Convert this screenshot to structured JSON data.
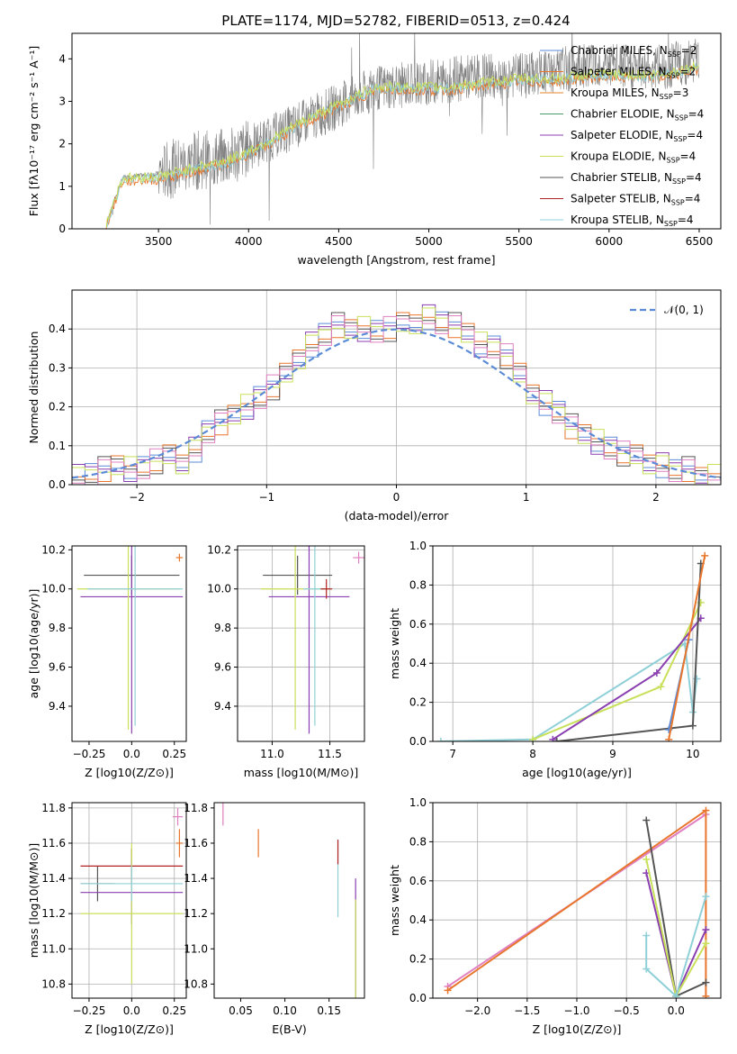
{
  "title": "PLATE=1174, MJD=52782, FIBERID=0513, z=0.424",
  "legend_entries": [
    {
      "label": "Chabrier MILES, N",
      "sub": "SSP",
      "suffix": "=2",
      "color": "#5b8bd6"
    },
    {
      "label": "Salpeter MILES, N",
      "sub": "SSP",
      "suffix": "=2",
      "color": "#e8762c"
    },
    {
      "label": "Kroupa MILES, N",
      "sub": "SSP",
      "suffix": "=3",
      "color": "#e0852b"
    },
    {
      "label": "Chabrier ELODIE, N",
      "sub": "SSP",
      "suffix": "=4",
      "color": "#4a9a6a"
    },
    {
      "label": "Salpeter ELODIE, N",
      "sub": "SSP",
      "suffix": "=4",
      "color": "#8a3fb0"
    },
    {
      "label": "Kroupa ELODIE, N",
      "sub": "SSP",
      "suffix": "=4",
      "color": "#c8e05a"
    },
    {
      "label": "Chabrier STELIB, N",
      "sub": "SSP",
      "suffix": "=4",
      "color": "#555555"
    },
    {
      "label": "Salpeter STELIB, N",
      "sub": "SSP",
      "suffix": "=4",
      "color": "#b22222"
    },
    {
      "label": "Kroupa STELIB, N",
      "sub": "SSP",
      "suffix": "=4",
      "color": "#8fd0d8"
    }
  ],
  "chart_data": [
    {
      "type": "line",
      "panel": "spectrum",
      "xlabel": "wavelength [Angstrom, rest frame]",
      "ylabel": "Flux [fλ10⁻¹⁷ erg cm⁻² s⁻¹ A⁻¹]",
      "xlim": [
        3020,
        6620
      ],
      "ylim": [
        0,
        4.6
      ],
      "xticks": [
        3500,
        4000,
        4500,
        5000,
        5500,
        6000,
        6500
      ],
      "yticks": [
        0,
        1,
        2,
        3,
        4
      ],
      "series": [
        {
          "name": "data",
          "color": "#808080",
          "x": [
            3200,
            3300,
            3500,
            3700,
            3900,
            4100,
            4300,
            4500,
            4700,
            4900,
            5100,
            5300,
            5500,
            5700,
            5900,
            6100,
            6300,
            6500
          ],
          "y": [
            0.0,
            1.2,
            1.3,
            1.6,
            1.7,
            2.1,
            2.5,
            2.9,
            3.3,
            3.4,
            3.5,
            3.6,
            3.6,
            3.7,
            3.9,
            3.8,
            3.8,
            4.0
          ]
        },
        {
          "name": "model",
          "color": "#e8762c",
          "x": [
            3200,
            3300,
            3500,
            3700,
            3900,
            4100,
            4300,
            4500,
            4700,
            4900,
            5100,
            5300,
            5500,
            5700,
            5900,
            6100,
            6300,
            6500
          ],
          "y": [
            0.0,
            1.15,
            1.2,
            1.4,
            1.6,
            2.0,
            2.5,
            2.9,
            3.3,
            3.3,
            3.3,
            3.4,
            3.5,
            3.5,
            3.6,
            3.6,
            3.6,
            3.8
          ]
        }
      ]
    },
    {
      "type": "histogram",
      "panel": "residuals",
      "xlabel": "(data-model)/error",
      "ylabel": "Normed distribution",
      "xlim": [
        -2.5,
        2.5
      ],
      "ylim": [
        0,
        0.5
      ],
      "xticks": [
        -2,
        -1,
        0,
        1,
        2
      ],
      "yticks": [
        0.0,
        0.1,
        0.2,
        0.3,
        0.4
      ],
      "bin_width": 0.1,
      "bins_x": [
        -2.5,
        -2.4,
        -2.3,
        -2.2,
        -2.1,
        -2.0,
        -1.9,
        -1.8,
        -1.7,
        -1.6,
        -1.5,
        -1.4,
        -1.3,
        -1.2,
        -1.1,
        -1.0,
        -0.9,
        -0.8,
        -0.7,
        -0.6,
        -0.5,
        -0.4,
        -0.3,
        -0.2,
        -0.1,
        0.0,
        0.1,
        0.2,
        0.3,
        0.4,
        0.5,
        0.6,
        0.7,
        0.8,
        0.9,
        1.0,
        1.1,
        1.2,
        1.3,
        1.4,
        1.5,
        1.6,
        1.7,
        1.8,
        1.9,
        2.0,
        2.1,
        2.2,
        2.3,
        2.4
      ],
      "bins_y": [
        0.02,
        0.03,
        0.04,
        0.05,
        0.04,
        0.04,
        0.06,
        0.07,
        0.06,
        0.09,
        0.14,
        0.16,
        0.18,
        0.2,
        0.22,
        0.25,
        0.28,
        0.33,
        0.36,
        0.39,
        0.41,
        0.4,
        0.4,
        0.39,
        0.4,
        0.41,
        0.42,
        0.43,
        0.42,
        0.41,
        0.39,
        0.36,
        0.35,
        0.33,
        0.28,
        0.24,
        0.21,
        0.19,
        0.15,
        0.13,
        0.11,
        0.09,
        0.08,
        0.07,
        0.06,
        0.05,
        0.04,
        0.04,
        0.02,
        0.02
      ],
      "reference": {
        "name": "N(0,1)",
        "mu": 0,
        "sigma": 1,
        "color": "#5b8bd6"
      }
    },
    {
      "type": "scatter",
      "panel": "age-vs-Z",
      "xlabel": "Z [log10(Z/Z⊙)]",
      "ylabel": "age  [log10(age/yr)]",
      "xlim": [
        -0.35,
        0.32
      ],
      "ylim": [
        9.22,
        10.22
      ],
      "xticks": [
        -0.25,
        0.0,
        0.25
      ],
      "yticks": [
        9.4,
        9.6,
        9.8,
        10.0,
        10.2
      ],
      "points": [
        {
          "x": 0.0,
          "y": 10.07,
          "xerr": 0.28,
          "yerr": 0.1,
          "color": "#555555"
        },
        {
          "x": 0.0,
          "y": 9.96,
          "xerr": 0.3,
          "yerr": 0.7,
          "color": "#8a3fb0"
        },
        {
          "x": -0.02,
          "y": 10.0,
          "xerr": 0.3,
          "yerr": 0.72,
          "color": "#c8e05a"
        },
        {
          "x": 0.02,
          "y": 10.0,
          "xerr": 0.28,
          "yerr": 0.7,
          "color": "#8fd0d8"
        },
        {
          "x": 0.28,
          "y": 10.16,
          "xerr": 0.02,
          "yerr": 0.02,
          "color": "#e8762c"
        }
      ]
    },
    {
      "type": "scatter",
      "panel": "age-vs-mass",
      "xlabel": "mass [log10(M/M⊙)]",
      "ylabel": "",
      "xlim": [
        10.7,
        11.8
      ],
      "ylim": [
        9.22,
        10.22
      ],
      "xticks": [
        11.0,
        11.5
      ],
      "yticks": [
        9.4,
        9.6,
        9.8,
        10.0,
        10.2
      ],
      "points": [
        {
          "x": 11.22,
          "y": 10.07,
          "xerr": 0.3,
          "yerr": 0.1,
          "color": "#555555"
        },
        {
          "x": 11.32,
          "y": 9.96,
          "xerr": 0.35,
          "yerr": 0.7,
          "color": "#8a3fb0"
        },
        {
          "x": 11.2,
          "y": 10.0,
          "xerr": 0.3,
          "yerr": 0.72,
          "color": "#c8e05a"
        },
        {
          "x": 11.37,
          "y": 10.0,
          "xerr": 0.1,
          "yerr": 0.7,
          "color": "#8fd0d8"
        },
        {
          "x": 11.47,
          "y": 10.0,
          "xerr": 0.05,
          "yerr": 0.05,
          "color": "#b22222"
        },
        {
          "x": 11.75,
          "y": 10.16,
          "xerr": 0.05,
          "yerr": 0.03,
          "color": "#e080c0"
        }
      ]
    },
    {
      "type": "line",
      "panel": "mass-weight-vs-age",
      "xlabel": "age  [log10(age/yr)]",
      "ylabel": "mass weight",
      "xlim": [
        6.75,
        10.35
      ],
      "ylim": [
        0,
        1.0
      ],
      "xticks": [
        7,
        8,
        9,
        10
      ],
      "yticks": [
        0.0,
        0.2,
        0.4,
        0.6,
        0.8,
        1.0
      ],
      "series": [
        {
          "color": "#8fd0d8",
          "x": [
            6.85,
            8.0,
            9.9,
            10.0,
            10.05
          ],
          "y": [
            0.0,
            0.01,
            0.5,
            0.15,
            0.32
          ]
        },
        {
          "color": "#c8e05a",
          "x": [
            8.0,
            9.6,
            10.1
          ],
          "y": [
            0.01,
            0.28,
            0.71
          ]
        },
        {
          "color": "#8a3fb0",
          "x": [
            8.25,
            9.55,
            10.1
          ],
          "y": [
            0.01,
            0.35,
            0.63
          ]
        },
        {
          "color": "#555555",
          "x": [
            8.3,
            10.0,
            10.1
          ],
          "y": [
            0.0,
            0.08,
            0.91
          ]
        },
        {
          "color": "#5b8bd6",
          "x": [
            9.7,
            9.95
          ],
          "y": [
            0.06,
            0.52
          ]
        },
        {
          "color": "#e8762c",
          "x": [
            9.7,
            10.15
          ],
          "y": [
            0.01,
            0.95
          ]
        }
      ]
    },
    {
      "type": "scatter",
      "panel": "mass-vs-Z",
      "xlabel": "Z [log10(Z/Z⊙)]",
      "ylabel": "mass [log10(M/M⊙)]",
      "xlim": [
        -0.35,
        0.32
      ],
      "ylim": [
        10.72,
        11.83
      ],
      "xticks": [
        -0.25,
        0.0,
        0.25
      ],
      "yticks": [
        10.8,
        11.0,
        11.2,
        11.4,
        11.6,
        11.8
      ],
      "points": [
        {
          "x": -0.2,
          "y": 11.37,
          "xerr": 0.1,
          "yerr": 0.1,
          "color": "#555555"
        },
        {
          "x": 0.0,
          "y": 11.47,
          "xerr": 0.3,
          "yerr": 0.1,
          "color": "#b22222"
        },
        {
          "x": 0.0,
          "y": 11.32,
          "xerr": 0.3,
          "yerr": 0.18,
          "color": "#8a3fb0"
        },
        {
          "x": 0.0,
          "y": 11.2,
          "xerr": 0.3,
          "yerr": 0.4,
          "color": "#c8e05a"
        },
        {
          "x": 0.0,
          "y": 11.37,
          "xerr": 0.3,
          "yerr": 0.1,
          "color": "#8fd0d8"
        },
        {
          "x": 0.27,
          "y": 11.75,
          "xerr": 0.03,
          "yerr": 0.05,
          "color": "#e080c0"
        },
        {
          "x": 0.28,
          "y": 11.6,
          "xerr": 0.02,
          "yerr": 0.08,
          "color": "#e8762c"
        }
      ]
    },
    {
      "type": "scatter",
      "panel": "mass-vs-EBV",
      "xlabel": "E(B-V)",
      "ylabel": "",
      "xlim": [
        0.02,
        0.19
      ],
      "ylim": [
        10.72,
        11.83
      ],
      "xticks": [
        0.05,
        0.1,
        0.15
      ],
      "yticks": [
        10.8,
        11.0,
        11.2,
        11.4,
        11.6,
        11.8
      ],
      "points": [
        {
          "x": 0.03,
          "y": 11.77,
          "yerr": 0.07,
          "color": "#e080c0"
        },
        {
          "x": 0.07,
          "y": 11.6,
          "yerr": 0.08,
          "color": "#e8762c"
        },
        {
          "x": 0.16,
          "y": 11.4,
          "yerr": 0.22,
          "color": "#8fd0d8"
        },
        {
          "x": 0.16,
          "y": 11.55,
          "yerr": 0.07,
          "color": "#b22222"
        },
        {
          "x": 0.18,
          "y": 11.05,
          "yerr": 0.35,
          "color": "#8a3fb0"
        },
        {
          "x": 0.18,
          "y": 11.0,
          "yerr": 0.28,
          "color": "#c8e05a"
        }
      ]
    },
    {
      "type": "line",
      "panel": "mass-weight-vs-Z",
      "xlabel": "Z [log10(Z/Z⊙)]",
      "ylabel": "mass weight",
      "xlim": [
        -2.45,
        0.45
      ],
      "ylim": [
        0,
        1.0
      ],
      "xticks": [
        -2.0,
        -1.5,
        -1.0,
        -0.5,
        0.0
      ],
      "yticks": [
        0.0,
        0.2,
        0.4,
        0.6,
        0.8,
        1.0
      ],
      "series": [
        {
          "color": "#e080c0",
          "x": [
            -2.3,
            0.3
          ],
          "y": [
            0.06,
            0.94
          ]
        },
        {
          "color": "#e8762c",
          "x": [
            -2.3,
            0.3,
            0.3
          ],
          "y": [
            0.04,
            0.96,
            0.01
          ]
        },
        {
          "color": "#555555",
          "x": [
            -0.3,
            0.0,
            0.3
          ],
          "y": [
            0.91,
            0.01,
            0.08
          ]
        },
        {
          "color": "#8a3fb0",
          "x": [
            -0.3,
            0.0,
            0.3
          ],
          "y": [
            0.64,
            0.01,
            0.35
          ]
        },
        {
          "color": "#c8e05a",
          "x": [
            -0.3,
            0.0,
            0.3
          ],
          "y": [
            0.71,
            0.01,
            0.28
          ]
        },
        {
          "color": "#8fd0d8",
          "x": [
            -0.3,
            -0.3,
            0.0,
            0.3
          ],
          "y": [
            0.32,
            0.15,
            0.01,
            0.52
          ]
        }
      ]
    }
  ]
}
